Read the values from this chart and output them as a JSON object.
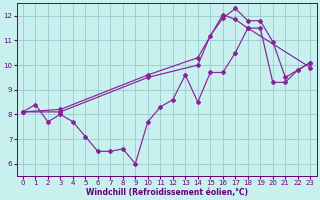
{
  "xlabel": "Windchill (Refroidissement éolien,°C)",
  "bg_color": "#c8f0ee",
  "line_color": "#882299",
  "marker": "D",
  "marker_size": 2.0,
  "line_width": 0.85,
  "xlim": [
    -0.5,
    23.5
  ],
  "ylim": [
    5.5,
    12.5
  ],
  "xticks": [
    0,
    1,
    2,
    3,
    4,
    5,
    6,
    7,
    8,
    9,
    10,
    11,
    12,
    13,
    14,
    15,
    16,
    17,
    18,
    19,
    20,
    21,
    22,
    23
  ],
  "yticks": [
    6,
    7,
    8,
    9,
    10,
    11,
    12
  ],
  "grid_color": "#99cccc",
  "series1": [
    [
      0,
      8.1
    ],
    [
      1,
      8.4
    ],
    [
      2,
      7.7
    ],
    [
      3,
      8.0
    ],
    [
      4,
      7.7
    ],
    [
      5,
      7.1
    ],
    [
      6,
      6.5
    ],
    [
      7,
      6.5
    ],
    [
      8,
      6.6
    ],
    [
      9,
      6.0
    ],
    [
      10,
      7.7
    ],
    [
      11,
      8.3
    ],
    [
      12,
      8.6
    ],
    [
      13,
      9.6
    ],
    [
      14,
      8.5
    ],
    [
      15,
      9.7
    ],
    [
      16,
      9.7
    ],
    [
      17,
      10.5
    ],
    [
      18,
      11.5
    ],
    [
      19,
      11.5
    ],
    [
      20,
      9.3
    ],
    [
      21,
      9.3
    ],
    [
      22,
      9.8
    ],
    [
      23,
      10.1
    ]
  ],
  "series2": [
    [
      0,
      8.1
    ],
    [
      3,
      8.1
    ],
    [
      10,
      9.5
    ],
    [
      14,
      10.0
    ],
    [
      15,
      11.2
    ],
    [
      16,
      11.9
    ],
    [
      17,
      12.3
    ],
    [
      18,
      11.8
    ],
    [
      19,
      11.8
    ],
    [
      20,
      10.95
    ],
    [
      21,
      9.5
    ],
    [
      22,
      9.8
    ],
    [
      23,
      10.1
    ]
  ],
  "series3": [
    [
      0,
      8.1
    ],
    [
      3,
      8.2
    ],
    [
      10,
      9.6
    ],
    [
      14,
      10.3
    ],
    [
      16,
      12.05
    ],
    [
      17,
      11.85
    ],
    [
      18,
      11.5
    ],
    [
      23,
      9.9
    ]
  ],
  "tick_color": "#660077",
  "label_color": "#660077",
  "tick_fontsize": 5,
  "xlabel_fontsize": 5.5
}
